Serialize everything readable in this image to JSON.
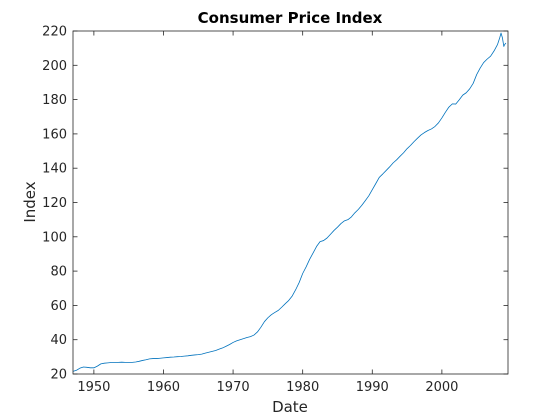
{
  "chart_data": {
    "type": "line",
    "title": "Consumer Price Index",
    "xlabel": "Date",
    "ylabel": "Index",
    "xlim": [
      1947,
      2009.5
    ],
    "ylim": [
      20,
      220
    ],
    "x_ticks": [
      1950,
      1960,
      1970,
      1980,
      1990,
      2000
    ],
    "y_ticks": [
      20,
      40,
      60,
      80,
      100,
      120,
      140,
      160,
      180,
      200,
      220
    ],
    "grid": false,
    "legend": "none",
    "line_color": "#0072bd",
    "axis_color": "#262626",
    "series": [
      {
        "x": [
          1947.0,
          1947.5,
          1948.0,
          1948.5,
          1949.0,
          1949.5,
          1950.0,
          1950.5,
          1951.0,
          1951.5,
          1952.0,
          1952.5,
          1953.0,
          1953.5,
          1954.0,
          1954.5,
          1955.0,
          1955.5,
          1956.0,
          1956.5,
          1957.0,
          1957.5,
          1958.0,
          1958.5,
          1959.0,
          1959.5,
          1960.0,
          1960.5,
          1961.0,
          1961.5,
          1962.0,
          1962.5,
          1963.0,
          1963.5,
          1964.0,
          1964.5,
          1965.0,
          1965.5,
          1966.0,
          1966.5,
          1967.0,
          1967.5,
          1968.0,
          1968.5,
          1969.0,
          1969.5,
          1970.0,
          1970.5,
          1971.0,
          1971.5,
          1972.0,
          1972.5,
          1973.0,
          1973.5,
          1974.0,
          1974.5,
          1975.0,
          1975.5,
          1976.0,
          1976.5,
          1977.0,
          1977.5,
          1978.0,
          1978.5,
          1979.0,
          1979.5,
          1980.0,
          1980.5,
          1981.0,
          1981.5,
          1982.0,
          1982.5,
          1983.0,
          1983.5,
          1984.0,
          1984.5,
          1985.0,
          1985.5,
          1986.0,
          1986.5,
          1987.0,
          1987.5,
          1988.0,
          1988.5,
          1989.0,
          1989.5,
          1990.0,
          1990.5,
          1991.0,
          1991.5,
          1992.0,
          1992.5,
          1993.0,
          1993.5,
          1994.0,
          1994.5,
          1995.0,
          1995.5,
          1996.0,
          1996.5,
          1997.0,
          1997.5,
          1998.0,
          1998.5,
          1999.0,
          1999.5,
          2000.0,
          2000.5,
          2001.0,
          2001.5,
          2002.0,
          2002.5,
          2003.0,
          2003.5,
          2004.0,
          2004.5,
          2005.0,
          2005.5,
          2006.0,
          2006.5,
          2007.0,
          2007.5,
          2008.0,
          2008.3,
          2008.5,
          2008.7,
          2008.9,
          2009.0,
          2009.2
        ],
        "values": [
          21.5,
          22.2,
          23.4,
          24.1,
          23.9,
          23.6,
          23.6,
          24.6,
          25.9,
          26.3,
          26.5,
          26.7,
          26.7,
          26.8,
          26.9,
          26.8,
          26.8,
          26.8,
          27.0,
          27.4,
          27.9,
          28.3,
          28.8,
          29.0,
          29.0,
          29.2,
          29.4,
          29.6,
          29.8,
          29.9,
          30.1,
          30.2,
          30.4,
          30.6,
          30.9,
          31.1,
          31.3,
          31.6,
          32.2,
          32.7,
          33.2,
          33.7,
          34.5,
          35.2,
          36.2,
          37.2,
          38.4,
          39.3,
          40.0,
          40.6,
          41.3,
          41.8,
          42.7,
          44.5,
          47.3,
          50.5,
          52.8,
          54.6,
          55.9,
          57.1,
          59.0,
          61.0,
          62.9,
          65.5,
          69.2,
          73.4,
          78.6,
          82.5,
          86.9,
          90.6,
          94.4,
          97.2,
          97.8,
          99.3,
          101.5,
          103.7,
          105.6,
          107.7,
          109.3,
          110.0,
          111.6,
          114.0,
          116.0,
          118.4,
          121.1,
          123.9,
          127.5,
          131.0,
          134.6,
          136.6,
          138.7,
          140.8,
          143.1,
          144.9,
          147.0,
          149.0,
          151.4,
          153.3,
          155.5,
          157.5,
          159.4,
          160.8,
          162.0,
          162.9,
          164.3,
          166.4,
          169.3,
          172.6,
          175.6,
          177.5,
          177.4,
          179.9,
          182.6,
          184.0,
          186.3,
          189.5,
          194.6,
          198.4,
          201.6,
          203.6,
          205.3,
          208.4,
          212.2,
          215.9,
          218.8,
          216.0,
          211.0,
          212.0,
          213.0
        ]
      }
    ]
  }
}
